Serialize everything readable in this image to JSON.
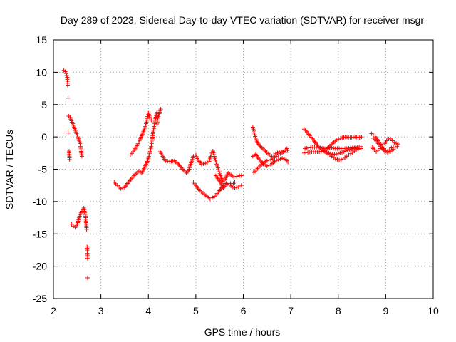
{
  "chart_data": {
    "type": "scatter",
    "title": "Day 289 of 2023, Sidereal Day-to-day VTEC variation (SDTVAR) for receiver msgr",
    "xlabel": "GPS time / hours",
    "ylabel": "SDTVAR / TECUs",
    "xlim": [
      2,
      10
    ],
    "ylim": [
      -25,
      15
    ],
    "xticks": [
      2,
      3,
      4,
      5,
      6,
      7,
      8,
      9,
      10
    ],
    "yticks": [
      -25,
      -20,
      -15,
      -10,
      -5,
      0,
      5,
      10,
      15
    ],
    "grid": true,
    "marker": "+",
    "marker_color": "#ff0000",
    "series": [
      {
        "name": "seg1",
        "points": [
          [
            2.22,
            10.3
          ],
          [
            2.25,
            10.1
          ],
          [
            2.27,
            9.8
          ],
          [
            2.29,
            9.2
          ],
          [
            2.3,
            8.0
          ],
          [
            2.31,
            6.0
          ],
          [
            2.32,
            3.2
          ],
          [
            2.35,
            3.0
          ],
          [
            2.38,
            2.5
          ],
          [
            2.42,
            1.8
          ],
          [
            2.46,
            1.0
          ],
          [
            2.5,
            0.3
          ],
          [
            2.53,
            -0.3
          ],
          [
            2.56,
            -1.0
          ],
          [
            2.58,
            -2.0
          ],
          [
            2.6,
            -3.0
          ]
        ]
      },
      {
        "name": "seg1b",
        "points": [
          [
            2.31,
            0.6
          ],
          [
            2.33,
            -2.2
          ],
          [
            2.34,
            -3.5
          ]
        ]
      },
      {
        "name": "seg2",
        "points": [
          [
            2.38,
            -13.5
          ],
          [
            2.42,
            -13.8
          ],
          [
            2.46,
            -14.0
          ],
          [
            2.5,
            -13.5
          ],
          [
            2.53,
            -12.8
          ],
          [
            2.56,
            -12.0
          ],
          [
            2.6,
            -11.5
          ],
          [
            2.64,
            -11.0
          ],
          [
            2.68,
            -12.5
          ],
          [
            2.7,
            -14.3
          ],
          [
            2.71,
            -17.0
          ],
          [
            2.72,
            -18.8
          ],
          [
            2.72,
            -21.8
          ]
        ]
      },
      {
        "name": "seg3",
        "points": [
          [
            3.28,
            -7.0
          ],
          [
            3.35,
            -7.5
          ],
          [
            3.42,
            -8.0
          ],
          [
            3.5,
            -7.8
          ],
          [
            3.58,
            -7.0
          ],
          [
            3.65,
            -6.4
          ],
          [
            3.72,
            -5.8
          ],
          [
            3.8,
            -5.3
          ],
          [
            3.86,
            -5.6
          ],
          [
            3.92,
            -4.7
          ],
          [
            3.98,
            -3.8
          ],
          [
            4.02,
            -2.8
          ],
          [
            4.06,
            -1.5
          ],
          [
            4.09,
            0.2
          ],
          [
            4.12,
            1.6
          ],
          [
            4.15,
            2.8
          ],
          [
            4.18,
            3.8
          ]
        ]
      },
      {
        "name": "seg3b",
        "points": [
          [
            3.62,
            -2.8
          ],
          [
            3.68,
            -2.3
          ],
          [
            3.74,
            -1.6
          ],
          [
            3.8,
            -0.8
          ],
          [
            3.86,
            0.2
          ],
          [
            3.91,
            1.1
          ],
          [
            3.96,
            2.3
          ],
          [
            4.0,
            3.7
          ],
          [
            4.03,
            3.0
          ],
          [
            4.06,
            2.6
          ]
        ]
      },
      {
        "name": "seg3c",
        "points": [
          [
            4.18,
            2.0
          ],
          [
            4.2,
            2.9
          ],
          [
            4.23,
            3.6
          ],
          [
            4.26,
            4.3
          ]
        ]
      },
      {
        "name": "seg4",
        "points": [
          [
            4.25,
            -2.3
          ],
          [
            4.3,
            -3.0
          ],
          [
            4.36,
            -3.7
          ],
          [
            4.45,
            -3.8
          ],
          [
            4.55,
            -3.7
          ],
          [
            4.63,
            -4.2
          ],
          [
            4.72,
            -5.0
          ],
          [
            4.8,
            -5.6
          ],
          [
            4.86,
            -5.0
          ],
          [
            4.9,
            -4.0
          ],
          [
            4.95,
            -3.0
          ],
          [
            5.0,
            -2.8
          ],
          [
            5.05,
            -3.6
          ],
          [
            5.12,
            -4.2
          ],
          [
            5.2,
            -4.1
          ],
          [
            5.28,
            -3.8
          ],
          [
            5.32,
            -2.8
          ],
          [
            5.36,
            -2.2
          ],
          [
            5.4,
            -3.3
          ],
          [
            5.44,
            -4.2
          ],
          [
            5.48,
            -5.1
          ],
          [
            5.52,
            -6.0
          ],
          [
            5.57,
            -6.9
          ],
          [
            5.62,
            -6.5
          ],
          [
            5.68,
            -5.6
          ],
          [
            5.74,
            -5.9
          ],
          [
            5.8,
            -6.2
          ],
          [
            5.86,
            -6.1
          ],
          [
            5.92,
            -6.0
          ],
          [
            5.96,
            -6.0
          ]
        ]
      },
      {
        "name": "seg4b",
        "points": [
          [
            4.95,
            -7.0
          ],
          [
            5.0,
            -7.5
          ],
          [
            5.06,
            -8.1
          ],
          [
            5.12,
            -8.5
          ],
          [
            5.18,
            -8.9
          ],
          [
            5.24,
            -9.2
          ],
          [
            5.3,
            -9.6
          ],
          [
            5.36,
            -9.4
          ],
          [
            5.42,
            -9.0
          ],
          [
            5.5,
            -8.3
          ],
          [
            5.58,
            -7.5
          ],
          [
            5.66,
            -7.3
          ],
          [
            5.74,
            -7.6
          ],
          [
            5.82,
            -7.9
          ],
          [
            5.9,
            -7.7
          ],
          [
            5.96,
            -7.5
          ]
        ]
      },
      {
        "name": "seg4c",
        "points": [
          [
            5.42,
            -6.0
          ],
          [
            5.5,
            -6.8
          ],
          [
            5.58,
            -7.9
          ],
          [
            5.64,
            -7.2
          ],
          [
            5.7,
            -7.0
          ],
          [
            5.76,
            -7.4
          ],
          [
            5.82,
            -7.0
          ]
        ]
      },
      {
        "name": "seg5",
        "points": [
          [
            6.2,
            1.5
          ],
          [
            6.23,
            0.6
          ],
          [
            6.26,
            -0.2
          ],
          [
            6.3,
            -0.9
          ],
          [
            6.36,
            -1.5
          ],
          [
            6.44,
            -2.0
          ],
          [
            6.52,
            -2.6
          ],
          [
            6.6,
            -3.0
          ],
          [
            6.68,
            -2.6
          ],
          [
            6.76,
            -2.3
          ],
          [
            6.84,
            -2.3
          ],
          [
            6.9,
            -2.4
          ],
          [
            6.93,
            -2.1
          ]
        ]
      },
      {
        "name": "seg5b",
        "points": [
          [
            6.22,
            -5.5
          ],
          [
            6.3,
            -4.9
          ],
          [
            6.38,
            -4.3
          ],
          [
            6.46,
            -3.8
          ],
          [
            6.54,
            -3.6
          ],
          [
            6.62,
            -3.4
          ],
          [
            6.7,
            -3.0
          ],
          [
            6.78,
            -2.6
          ],
          [
            6.86,
            -2.2
          ],
          [
            6.92,
            -1.8
          ]
        ]
      },
      {
        "name": "seg5c",
        "points": [
          [
            6.2,
            -3.0
          ],
          [
            6.26,
            -2.7
          ],
          [
            6.34,
            -3.5
          ],
          [
            6.42,
            -4.2
          ],
          [
            6.5,
            -4.5
          ],
          [
            6.58,
            -4.3
          ],
          [
            6.66,
            -3.8
          ],
          [
            6.74,
            -3.5
          ],
          [
            6.82,
            -3.3
          ],
          [
            6.9,
            -3.5
          ],
          [
            6.94,
            -3.9
          ]
        ]
      },
      {
        "name": "seg6",
        "points": [
          [
            7.28,
            1.2
          ],
          [
            7.34,
            0.8
          ],
          [
            7.4,
            0.2
          ],
          [
            7.46,
            -0.3
          ],
          [
            7.52,
            -0.9
          ],
          [
            7.58,
            -1.5
          ],
          [
            7.64,
            -2.0
          ],
          [
            7.72,
            -2.2
          ],
          [
            7.8,
            -1.6
          ],
          [
            7.88,
            -1.0
          ],
          [
            7.96,
            -0.5
          ],
          [
            8.05,
            -0.2
          ],
          [
            8.15,
            0.0
          ],
          [
            8.25,
            -0.1
          ],
          [
            8.35,
            0.0
          ],
          [
            8.45,
            -0.1
          ],
          [
            8.49,
            0.0
          ]
        ]
      },
      {
        "name": "seg6b",
        "points": [
          [
            7.28,
            -2.5
          ],
          [
            7.36,
            -2.4
          ],
          [
            7.44,
            -2.3
          ],
          [
            7.52,
            -2.3
          ],
          [
            7.6,
            -2.3
          ],
          [
            7.68,
            -2.2
          ],
          [
            7.76,
            -2.4
          ],
          [
            7.84,
            -2.6
          ],
          [
            7.92,
            -2.7
          ],
          [
            8.0,
            -2.6
          ],
          [
            8.08,
            -2.4
          ],
          [
            8.16,
            -2.2
          ],
          [
            8.24,
            -2.0
          ],
          [
            8.32,
            -1.8
          ],
          [
            8.4,
            -1.6
          ],
          [
            8.48,
            -1.5
          ]
        ]
      },
      {
        "name": "seg6c",
        "points": [
          [
            7.3,
            -1.8
          ],
          [
            7.38,
            -1.7
          ],
          [
            7.46,
            -1.6
          ],
          [
            7.54,
            -1.6
          ],
          [
            7.62,
            -1.7
          ],
          [
            7.7,
            -1.8
          ],
          [
            7.78,
            -1.7
          ],
          [
            7.86,
            -1.7
          ],
          [
            7.94,
            -1.8
          ],
          [
            8.02,
            -1.8
          ],
          [
            8.1,
            -1.8
          ],
          [
            8.18,
            -1.8
          ],
          [
            8.26,
            -1.7
          ],
          [
            8.34,
            -1.7
          ],
          [
            8.42,
            -1.8
          ],
          [
            8.48,
            -1.8
          ]
        ]
      },
      {
        "name": "seg6d",
        "points": [
          [
            7.7,
            -2.2
          ],
          [
            7.78,
            -2.6
          ],
          [
            7.86,
            -3.0
          ],
          [
            7.94,
            -3.4
          ],
          [
            8.02,
            -3.6
          ],
          [
            8.1,
            -3.4
          ],
          [
            8.18,
            -3.0
          ],
          [
            8.26,
            -2.6
          ],
          [
            8.34,
            -2.2
          ],
          [
            8.42,
            -1.9
          ]
        ]
      },
      {
        "name": "seg7",
        "points": [
          [
            8.7,
            0.5
          ],
          [
            8.74,
            0.3
          ],
          [
            8.78,
            0.0
          ],
          [
            8.82,
            -0.4
          ],
          [
            8.86,
            -0.8
          ],
          [
            8.9,
            -1.1
          ],
          [
            8.94,
            -1.2
          ],
          [
            8.98,
            -1.0
          ],
          [
            9.02,
            -0.6
          ],
          [
            9.06,
            -0.3
          ],
          [
            9.1,
            -0.3
          ],
          [
            9.14,
            -0.6
          ],
          [
            9.18,
            -0.9
          ],
          [
            9.22,
            -1.0
          ],
          [
            9.26,
            -1.1
          ]
        ]
      },
      {
        "name": "seg7b",
        "points": [
          [
            8.72,
            -1.6
          ],
          [
            8.76,
            -2.0
          ],
          [
            8.8,
            -2.3
          ],
          [
            8.84,
            -2.1
          ],
          [
            8.88,
            -1.8
          ],
          [
            8.92,
            -1.6
          ],
          [
            8.96,
            -1.8
          ],
          [
            9.0,
            -2.1
          ],
          [
            9.04,
            -2.2
          ],
          [
            9.08,
            -2.0
          ],
          [
            9.12,
            -1.7
          ],
          [
            9.16,
            -1.6
          ],
          [
            9.2,
            -1.6
          ],
          [
            9.24,
            -1.5
          ]
        ]
      },
      {
        "name": "seg7c",
        "points": [
          [
            8.74,
            -0.2
          ],
          [
            8.8,
            -0.6
          ],
          [
            8.86,
            -1.2
          ],
          [
            8.92,
            -1.7
          ],
          [
            8.98,
            -2.3
          ],
          [
            9.04,
            -2.5
          ],
          [
            9.1,
            -2.3
          ],
          [
            9.16,
            -1.9
          ]
        ]
      }
    ]
  }
}
